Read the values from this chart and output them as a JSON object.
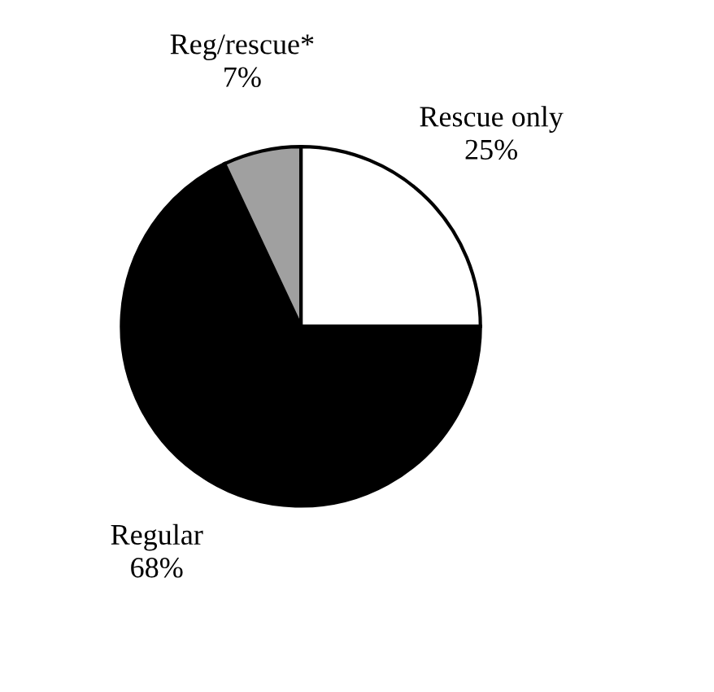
{
  "chart_data": {
    "type": "pie",
    "categories": [
      "Rescue only",
      "Regular",
      "Reg/rescue*"
    ],
    "values": [
      25,
      68,
      7
    ],
    "colors": [
      "#ffffff",
      "#000000",
      "#a0a0a0"
    ],
    "value_labels": [
      "25%",
      "68%",
      "7%"
    ]
  }
}
